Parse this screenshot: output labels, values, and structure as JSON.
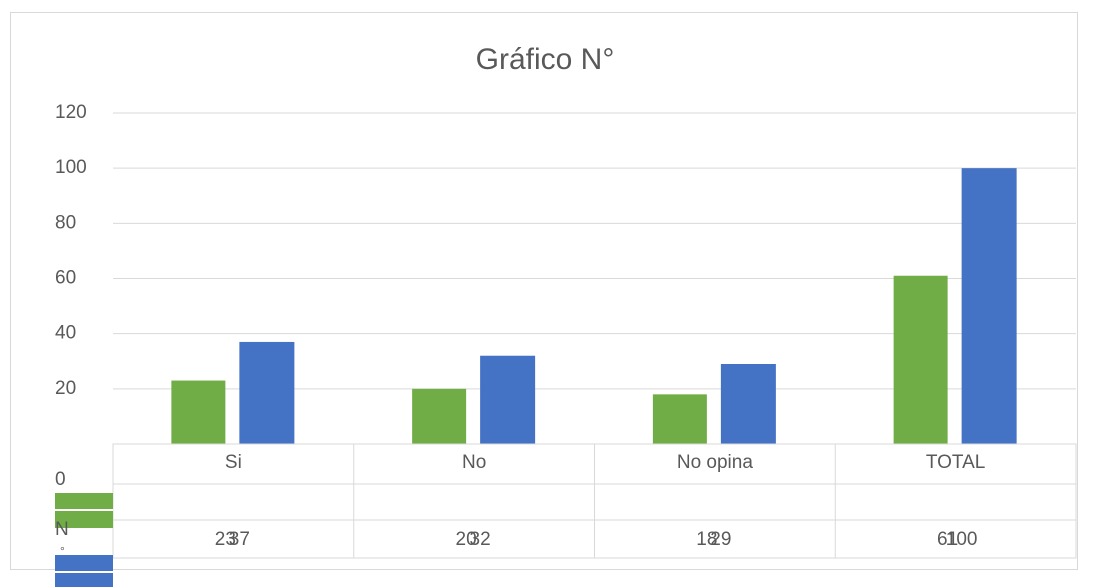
{
  "chart_data": {
    "type": "bar",
    "title": "Gráfico N°",
    "categories": [
      "Si",
      "No",
      "No opina",
      "TOTAL"
    ],
    "series": [
      {
        "name": "N",
        "color": "#70ad47",
        "values": [
          23,
          20,
          18,
          61
        ]
      },
      {
        "name": "°",
        "color": "#4472c4",
        "values": [
          37,
          32,
          29,
          100
        ]
      }
    ],
    "ylim": [
      0,
      120
    ],
    "yticks": [
      0,
      20,
      40,
      60,
      80,
      100,
      120
    ],
    "grid": true
  }
}
